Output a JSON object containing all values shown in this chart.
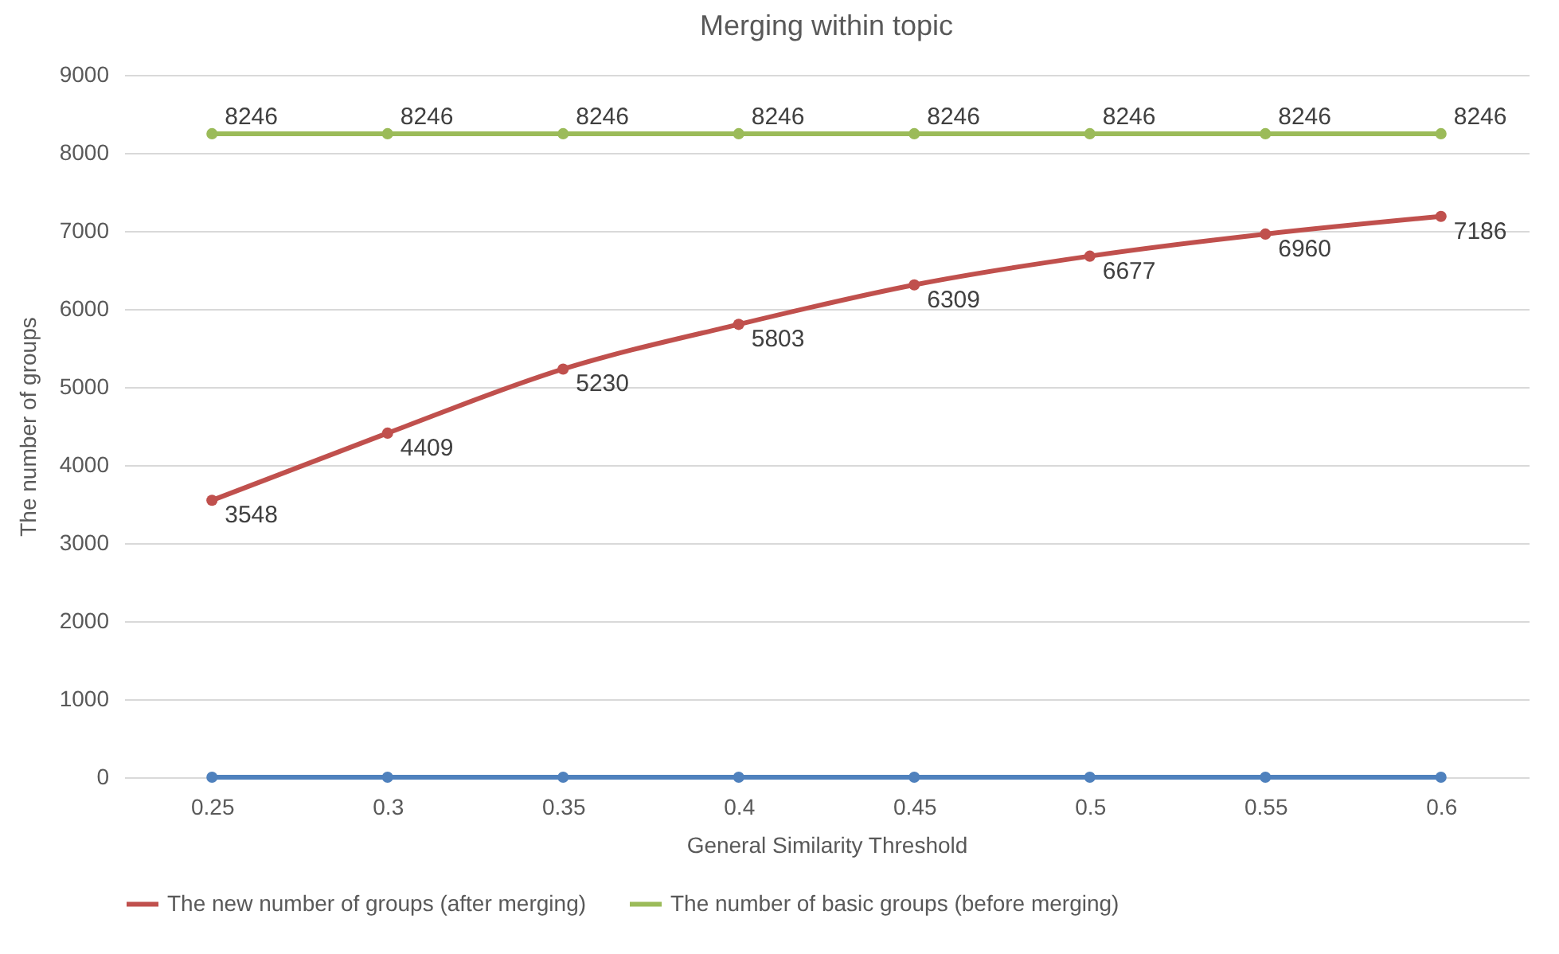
{
  "chart_data": {
    "type": "line",
    "title": "Merging within topic",
    "xlabel": "General Similarity Threshold",
    "ylabel": "The number of groups",
    "categories": [
      "0.25",
      "0.3",
      "0.35",
      "0.4",
      "0.45",
      "0.5",
      "0.55",
      "0.6"
    ],
    "series": [
      {
        "name": "The new number of groups (after merging)",
        "color": "#c0504d",
        "values": [
          3548,
          4409,
          5230,
          5803,
          6309,
          6677,
          6960,
          7186
        ],
        "value_labels": [
          "3548",
          "4409",
          "5230",
          "5803",
          "6309",
          "6677",
          "6960",
          "7186"
        ]
      },
      {
        "name": "The number of basic groups (before merging)",
        "color": "#9bbb59",
        "values": [
          8246,
          8246,
          8246,
          8246,
          8246,
          8246,
          8246,
          8246
        ],
        "value_labels": [
          "8246",
          "8246",
          "8246",
          "8246",
          "8246",
          "8246",
          "8246",
          "8246"
        ]
      },
      {
        "color": "#4f81bd",
        "values": [
          0,
          0,
          0,
          0,
          0,
          0,
          0,
          0
        ]
      }
    ],
    "ylim": [
      0,
      9000
    ],
    "yticks": [
      0,
      1000,
      2000,
      3000,
      4000,
      5000,
      6000,
      7000,
      8000,
      9000
    ],
    "grid": "y",
    "legend": "bottom",
    "marker": "circle",
    "line_style": "solid"
  }
}
